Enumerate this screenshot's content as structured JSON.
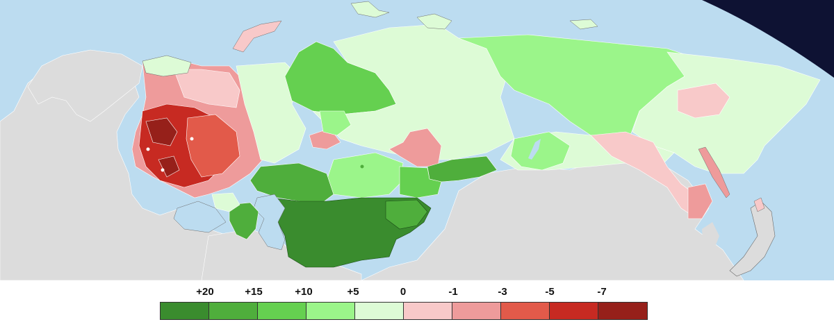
{
  "colors": {
    "sea": "#bcdcf0",
    "space": "#0e1233",
    "other_land": "#dcdcdc",
    "borders": "#ffffff",
    "outline": "#6a6a6a"
  },
  "legend": {
    "labels": [
      "+20",
      "+15",
      "+10",
      "+5",
      "0",
      "-1",
      "-3",
      "-5",
      "-7"
    ],
    "swatches": [
      "#3a8c2e",
      "#4fae3c",
      "#65d050",
      "#9bf58a",
      "#ddfbd6",
      "#f8c9c9",
      "#ee9b9b",
      "#e25a4a",
      "#c72a22",
      "#96201a"
    ]
  }
}
